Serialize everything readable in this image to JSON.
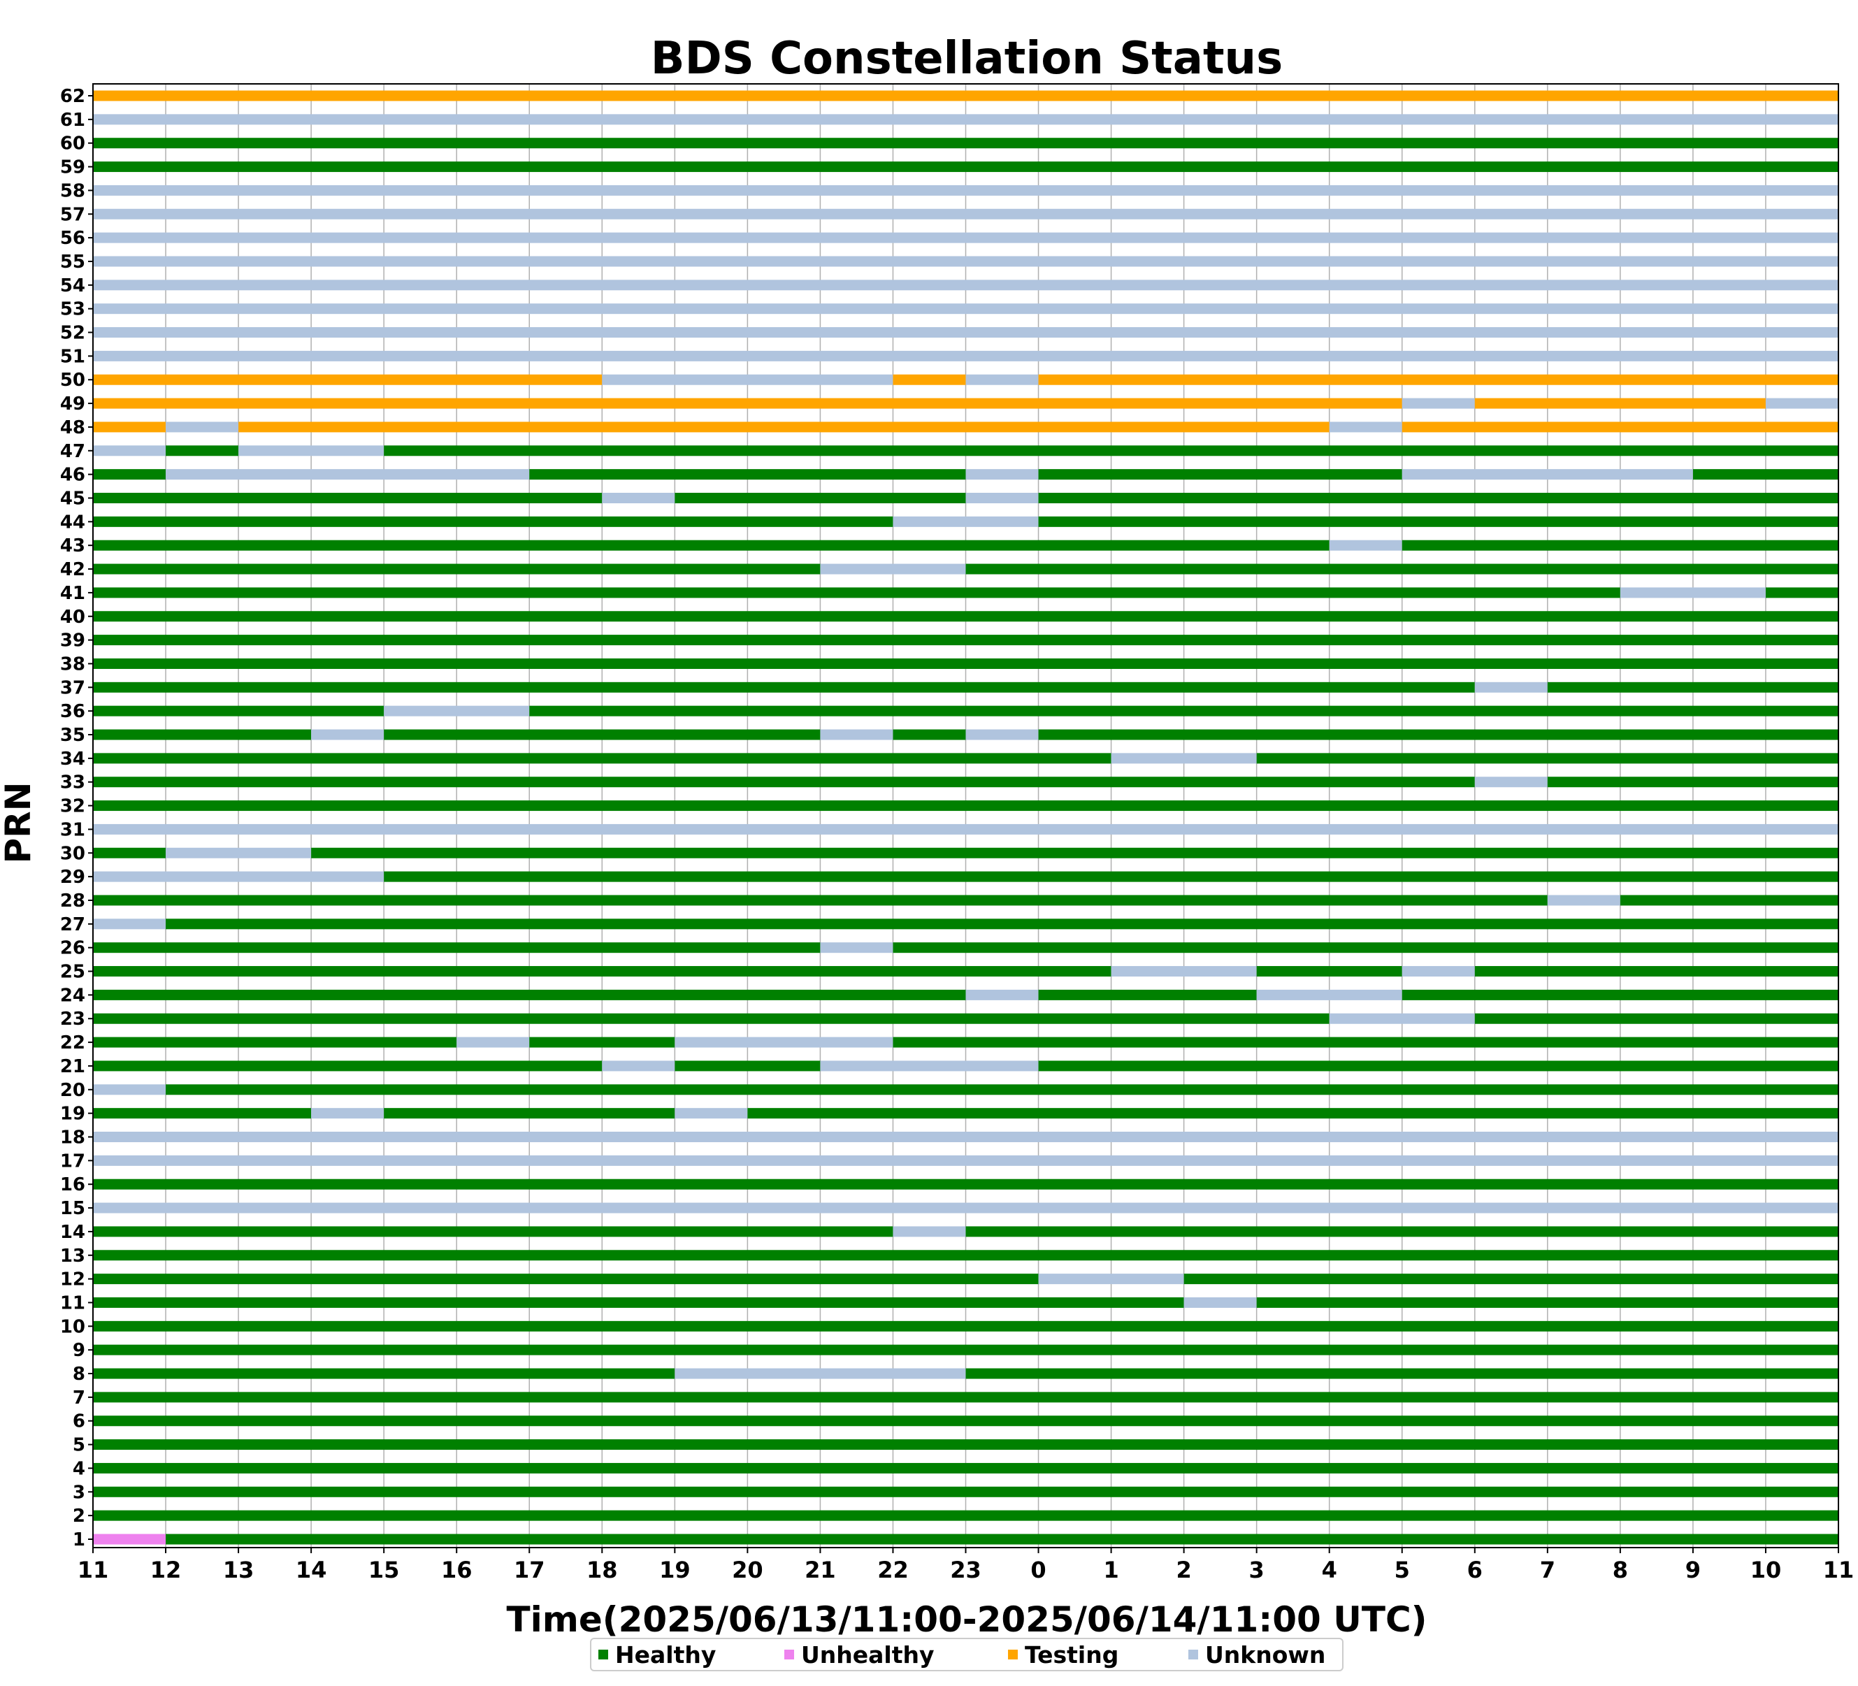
{
  "chart_data": {
    "type": "timeline",
    "title": "BDS Constellation Status",
    "xlabel": "Time(2025/06/13/11:00-2025/06/14/11:00 UTC)",
    "ylabel": "PRN",
    "x_tick_labels": [
      "11",
      "12",
      "13",
      "14",
      "15",
      "16",
      "17",
      "18",
      "19",
      "20",
      "21",
      "22",
      "23",
      "0",
      "1",
      "2",
      "3",
      "4",
      "5",
      "6",
      "7",
      "8",
      "9",
      "10",
      "11"
    ],
    "xlim_hours": [
      0,
      24
    ],
    "y_categories": [
      1,
      2,
      3,
      4,
      5,
      6,
      7,
      8,
      9,
      10,
      11,
      12,
      13,
      14,
      15,
      16,
      17,
      18,
      19,
      20,
      21,
      22,
      23,
      24,
      25,
      26,
      27,
      28,
      29,
      30,
      31,
      32,
      33,
      34,
      35,
      36,
      37,
      38,
      39,
      40,
      41,
      42,
      43,
      44,
      45,
      46,
      47,
      48,
      49,
      50,
      51,
      52,
      53,
      54,
      55,
      56,
      57,
      58,
      59,
      60,
      61,
      62
    ],
    "grid": "vertical",
    "legend_position": "bottom-center",
    "statuses": {
      "H": {
        "label": "Healthy",
        "color": "#008000"
      },
      "X": {
        "label": "Unhealthy",
        "color": "#ee82ee"
      },
      "T": {
        "label": "Testing",
        "color": "#ffa500"
      },
      "U": {
        "label": "Unknown",
        "color": "#b0c4de"
      }
    },
    "legend_order": [
      "H",
      "X",
      "T",
      "U"
    ],
    "series": [
      {
        "prn": 1,
        "segments": [
          [
            "X",
            0,
            1
          ],
          [
            "H",
            1,
            24
          ]
        ]
      },
      {
        "prn": 2,
        "segments": [
          [
            "H",
            0,
            24
          ]
        ]
      },
      {
        "prn": 3,
        "segments": [
          [
            "H",
            0,
            24
          ]
        ]
      },
      {
        "prn": 4,
        "segments": [
          [
            "H",
            0,
            24
          ]
        ]
      },
      {
        "prn": 5,
        "segments": [
          [
            "H",
            0,
            24
          ]
        ]
      },
      {
        "prn": 6,
        "segments": [
          [
            "H",
            0,
            24
          ]
        ]
      },
      {
        "prn": 7,
        "segments": [
          [
            "H",
            0,
            24
          ]
        ]
      },
      {
        "prn": 8,
        "segments": [
          [
            "H",
            0,
            8
          ],
          [
            "U",
            8,
            12
          ],
          [
            "H",
            12,
            24
          ]
        ]
      },
      {
        "prn": 9,
        "segments": [
          [
            "H",
            0,
            24
          ]
        ]
      },
      {
        "prn": 10,
        "segments": [
          [
            "H",
            0,
            24
          ]
        ]
      },
      {
        "prn": 11,
        "segments": [
          [
            "H",
            0,
            15
          ],
          [
            "U",
            15,
            16
          ],
          [
            "H",
            16,
            24
          ]
        ]
      },
      {
        "prn": 12,
        "segments": [
          [
            "H",
            0,
            13
          ],
          [
            "U",
            13,
            15
          ],
          [
            "H",
            15,
            24
          ]
        ]
      },
      {
        "prn": 13,
        "segments": [
          [
            "H",
            0,
            24
          ]
        ]
      },
      {
        "prn": 14,
        "segments": [
          [
            "H",
            0,
            11
          ],
          [
            "U",
            11,
            12
          ],
          [
            "H",
            12,
            24
          ]
        ]
      },
      {
        "prn": 15,
        "segments": [
          [
            "U",
            0,
            24
          ]
        ]
      },
      {
        "prn": 16,
        "segments": [
          [
            "H",
            0,
            24
          ]
        ]
      },
      {
        "prn": 17,
        "segments": [
          [
            "U",
            0,
            24
          ]
        ]
      },
      {
        "prn": 18,
        "segments": [
          [
            "U",
            0,
            24
          ]
        ]
      },
      {
        "prn": 19,
        "segments": [
          [
            "H",
            0,
            3
          ],
          [
            "U",
            3,
            4
          ],
          [
            "H",
            4,
            8
          ],
          [
            "U",
            8,
            9
          ],
          [
            "H",
            9,
            24
          ]
        ]
      },
      {
        "prn": 20,
        "segments": [
          [
            "U",
            0,
            1
          ],
          [
            "H",
            1,
            24
          ]
        ]
      },
      {
        "prn": 21,
        "segments": [
          [
            "H",
            0,
            7
          ],
          [
            "U",
            7,
            8
          ],
          [
            "H",
            8,
            10
          ],
          [
            "U",
            10,
            13
          ],
          [
            "H",
            13,
            24
          ]
        ]
      },
      {
        "prn": 22,
        "segments": [
          [
            "H",
            0,
            5
          ],
          [
            "U",
            5,
            6
          ],
          [
            "H",
            6,
            8
          ],
          [
            "U",
            8,
            11
          ],
          [
            "H",
            11,
            24
          ]
        ]
      },
      {
        "prn": 23,
        "segments": [
          [
            "H",
            0,
            17
          ],
          [
            "U",
            17,
            19
          ],
          [
            "H",
            19,
            24
          ]
        ]
      },
      {
        "prn": 24,
        "segments": [
          [
            "H",
            0,
            12
          ],
          [
            "U",
            12,
            13
          ],
          [
            "H",
            13,
            16
          ],
          [
            "U",
            16,
            18
          ],
          [
            "H",
            18,
            24
          ]
        ]
      },
      {
        "prn": 25,
        "segments": [
          [
            "H",
            0,
            14
          ],
          [
            "U",
            14,
            16
          ],
          [
            "H",
            16,
            18
          ],
          [
            "U",
            18,
            19
          ],
          [
            "H",
            19,
            24
          ]
        ]
      },
      {
        "prn": 26,
        "segments": [
          [
            "H",
            0,
            10
          ],
          [
            "U",
            10,
            11
          ],
          [
            "H",
            11,
            24
          ]
        ]
      },
      {
        "prn": 27,
        "segments": [
          [
            "U",
            0,
            1
          ],
          [
            "H",
            1,
            24
          ]
        ]
      },
      {
        "prn": 28,
        "segments": [
          [
            "H",
            0,
            20
          ],
          [
            "U",
            20,
            21
          ],
          [
            "H",
            21,
            24
          ]
        ]
      },
      {
        "prn": 29,
        "segments": [
          [
            "U",
            0,
            4
          ],
          [
            "H",
            4,
            24
          ]
        ]
      },
      {
        "prn": 30,
        "segments": [
          [
            "H",
            0,
            1
          ],
          [
            "U",
            1,
            3
          ],
          [
            "H",
            3,
            24
          ]
        ]
      },
      {
        "prn": 31,
        "segments": [
          [
            "U",
            0,
            24
          ]
        ]
      },
      {
        "prn": 32,
        "segments": [
          [
            "H",
            0,
            24
          ]
        ]
      },
      {
        "prn": 33,
        "segments": [
          [
            "H",
            0,
            19
          ],
          [
            "U",
            19,
            20
          ],
          [
            "H",
            20,
            24
          ]
        ]
      },
      {
        "prn": 34,
        "segments": [
          [
            "H",
            0,
            14
          ],
          [
            "U",
            14,
            16
          ],
          [
            "H",
            16,
            24
          ]
        ]
      },
      {
        "prn": 35,
        "segments": [
          [
            "H",
            0,
            3
          ],
          [
            "U",
            3,
            4
          ],
          [
            "H",
            4,
            10
          ],
          [
            "U",
            10,
            11
          ],
          [
            "H",
            11,
            12
          ],
          [
            "U",
            12,
            13
          ],
          [
            "H",
            13,
            24
          ]
        ]
      },
      {
        "prn": 36,
        "segments": [
          [
            "H",
            0,
            4
          ],
          [
            "U",
            4,
            6
          ],
          [
            "H",
            6,
            24
          ]
        ]
      },
      {
        "prn": 37,
        "segments": [
          [
            "H",
            0,
            19
          ],
          [
            "U",
            19,
            20
          ],
          [
            "H",
            20,
            24
          ]
        ]
      },
      {
        "prn": 38,
        "segments": [
          [
            "H",
            0,
            24
          ]
        ]
      },
      {
        "prn": 39,
        "segments": [
          [
            "H",
            0,
            24
          ]
        ]
      },
      {
        "prn": 40,
        "segments": [
          [
            "H",
            0,
            24
          ]
        ]
      },
      {
        "prn": 41,
        "segments": [
          [
            "H",
            0,
            21
          ],
          [
            "U",
            21,
            23
          ],
          [
            "H",
            23,
            24
          ]
        ]
      },
      {
        "prn": 42,
        "segments": [
          [
            "H",
            0,
            10
          ],
          [
            "U",
            10,
            12
          ],
          [
            "H",
            12,
            24
          ]
        ]
      },
      {
        "prn": 43,
        "segments": [
          [
            "H",
            0,
            17
          ],
          [
            "U",
            17,
            18
          ],
          [
            "H",
            18,
            24
          ]
        ]
      },
      {
        "prn": 44,
        "segments": [
          [
            "H",
            0,
            11
          ],
          [
            "U",
            11,
            13
          ],
          [
            "H",
            13,
            24
          ]
        ]
      },
      {
        "prn": 45,
        "segments": [
          [
            "H",
            0,
            7
          ],
          [
            "U",
            7,
            8
          ],
          [
            "H",
            8,
            12
          ],
          [
            "U",
            12,
            13
          ],
          [
            "H",
            13,
            24
          ]
        ]
      },
      {
        "prn": 46,
        "segments": [
          [
            "H",
            0,
            1
          ],
          [
            "U",
            1,
            6
          ],
          [
            "H",
            6,
            12
          ],
          [
            "U",
            12,
            13
          ],
          [
            "H",
            13,
            18
          ],
          [
            "U",
            18,
            22
          ],
          [
            "H",
            22,
            24
          ]
        ]
      },
      {
        "prn": 47,
        "segments": [
          [
            "U",
            0,
            1
          ],
          [
            "H",
            1,
            2
          ],
          [
            "U",
            2,
            4
          ],
          [
            "H",
            4,
            24
          ]
        ]
      },
      {
        "prn": 48,
        "segments": [
          [
            "T",
            0,
            1
          ],
          [
            "U",
            1,
            2
          ],
          [
            "T",
            2,
            17
          ],
          [
            "U",
            17,
            18
          ],
          [
            "T",
            18,
            24
          ]
        ]
      },
      {
        "prn": 49,
        "segments": [
          [
            "T",
            0,
            18
          ],
          [
            "U",
            18,
            19
          ],
          [
            "T",
            19,
            23
          ],
          [
            "U",
            23,
            24
          ]
        ]
      },
      {
        "prn": 50,
        "segments": [
          [
            "T",
            0,
            7
          ],
          [
            "U",
            7,
            11
          ],
          [
            "T",
            11,
            12
          ],
          [
            "U",
            12,
            13
          ],
          [
            "T",
            13,
            24
          ]
        ]
      },
      {
        "prn": 51,
        "segments": [
          [
            "U",
            0,
            24
          ]
        ]
      },
      {
        "prn": 52,
        "segments": [
          [
            "U",
            0,
            24
          ]
        ]
      },
      {
        "prn": 53,
        "segments": [
          [
            "U",
            0,
            24
          ]
        ]
      },
      {
        "prn": 54,
        "segments": [
          [
            "U",
            0,
            24
          ]
        ]
      },
      {
        "prn": 55,
        "segments": [
          [
            "U",
            0,
            24
          ]
        ]
      },
      {
        "prn": 56,
        "segments": [
          [
            "U",
            0,
            24
          ]
        ]
      },
      {
        "prn": 57,
        "segments": [
          [
            "U",
            0,
            24
          ]
        ]
      },
      {
        "prn": 58,
        "segments": [
          [
            "U",
            0,
            24
          ]
        ]
      },
      {
        "prn": 59,
        "segments": [
          [
            "H",
            0,
            24
          ]
        ]
      },
      {
        "prn": 60,
        "segments": [
          [
            "H",
            0,
            24
          ]
        ]
      },
      {
        "prn": 61,
        "segments": [
          [
            "U",
            0,
            24
          ]
        ]
      },
      {
        "prn": 62,
        "segments": [
          [
            "T",
            0,
            24
          ]
        ]
      }
    ]
  }
}
